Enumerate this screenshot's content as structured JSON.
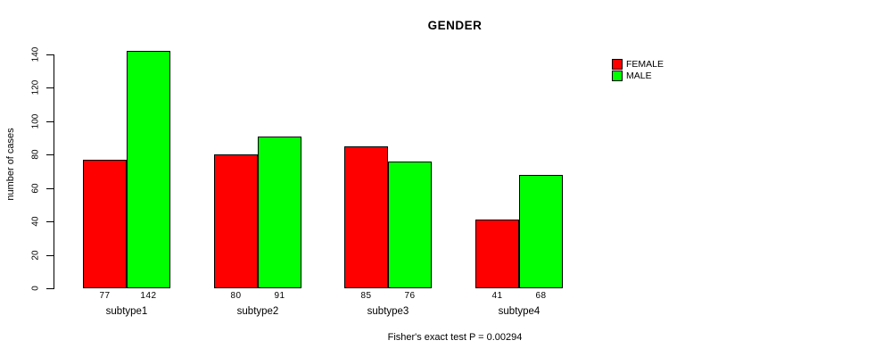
{
  "title": "GENDER",
  "footer": "Fisher's exact test P = 0.00294",
  "colors": {
    "female": "#ff0000",
    "male": "#00ff00",
    "axis": "#000000",
    "background": "#ffffff"
  },
  "legend": {
    "items": [
      {
        "label": "FEMALE",
        "color": "#ff0000"
      },
      {
        "label": "MALE",
        "color": "#00ff00"
      }
    ]
  },
  "chart_data": {
    "type": "bar",
    "title": "GENDER",
    "categories": [
      "subtype1",
      "subtype2",
      "subtype3",
      "subtype4"
    ],
    "series": [
      {
        "name": "FEMALE",
        "color": "#ff0000",
        "values": [
          77,
          80,
          85,
          41
        ]
      },
      {
        "name": "MALE",
        "color": "#00ff00",
        "values": [
          142,
          91,
          76,
          68
        ]
      }
    ],
    "xlabel": "",
    "ylabel": "number of cases",
    "ylim": [
      0,
      140
    ],
    "yticks": [
      0,
      20,
      40,
      60,
      80,
      100,
      120,
      140
    ],
    "grid": false,
    "legend_position": "top-right",
    "bar_labels": true,
    "annotation": "Fisher's exact test P = 0.00294"
  }
}
